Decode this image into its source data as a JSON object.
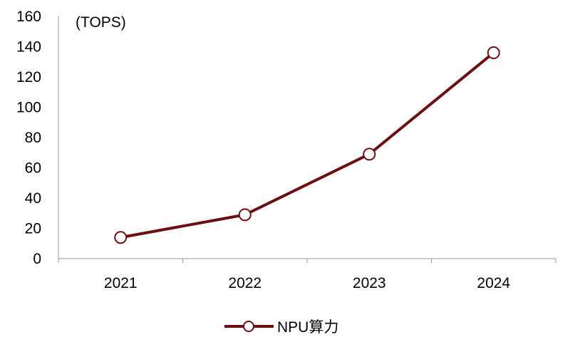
{
  "chart_data": {
    "type": "line",
    "unit_label": "(TOPS)",
    "categories": [
      "2021",
      "2022",
      "2023",
      "2024"
    ],
    "series": [
      {
        "name": "NPU算力",
        "values": [
          14,
          29,
          69,
          136
        ],
        "color": "#6b0f12"
      }
    ],
    "ylim": [
      0,
      160
    ],
    "yticks": [
      "0",
      "20",
      "40",
      "60",
      "80",
      "100",
      "120",
      "140",
      "160"
    ],
    "grid": false,
    "legend_position": "bottom-center",
    "marker": "hollow-circle"
  }
}
